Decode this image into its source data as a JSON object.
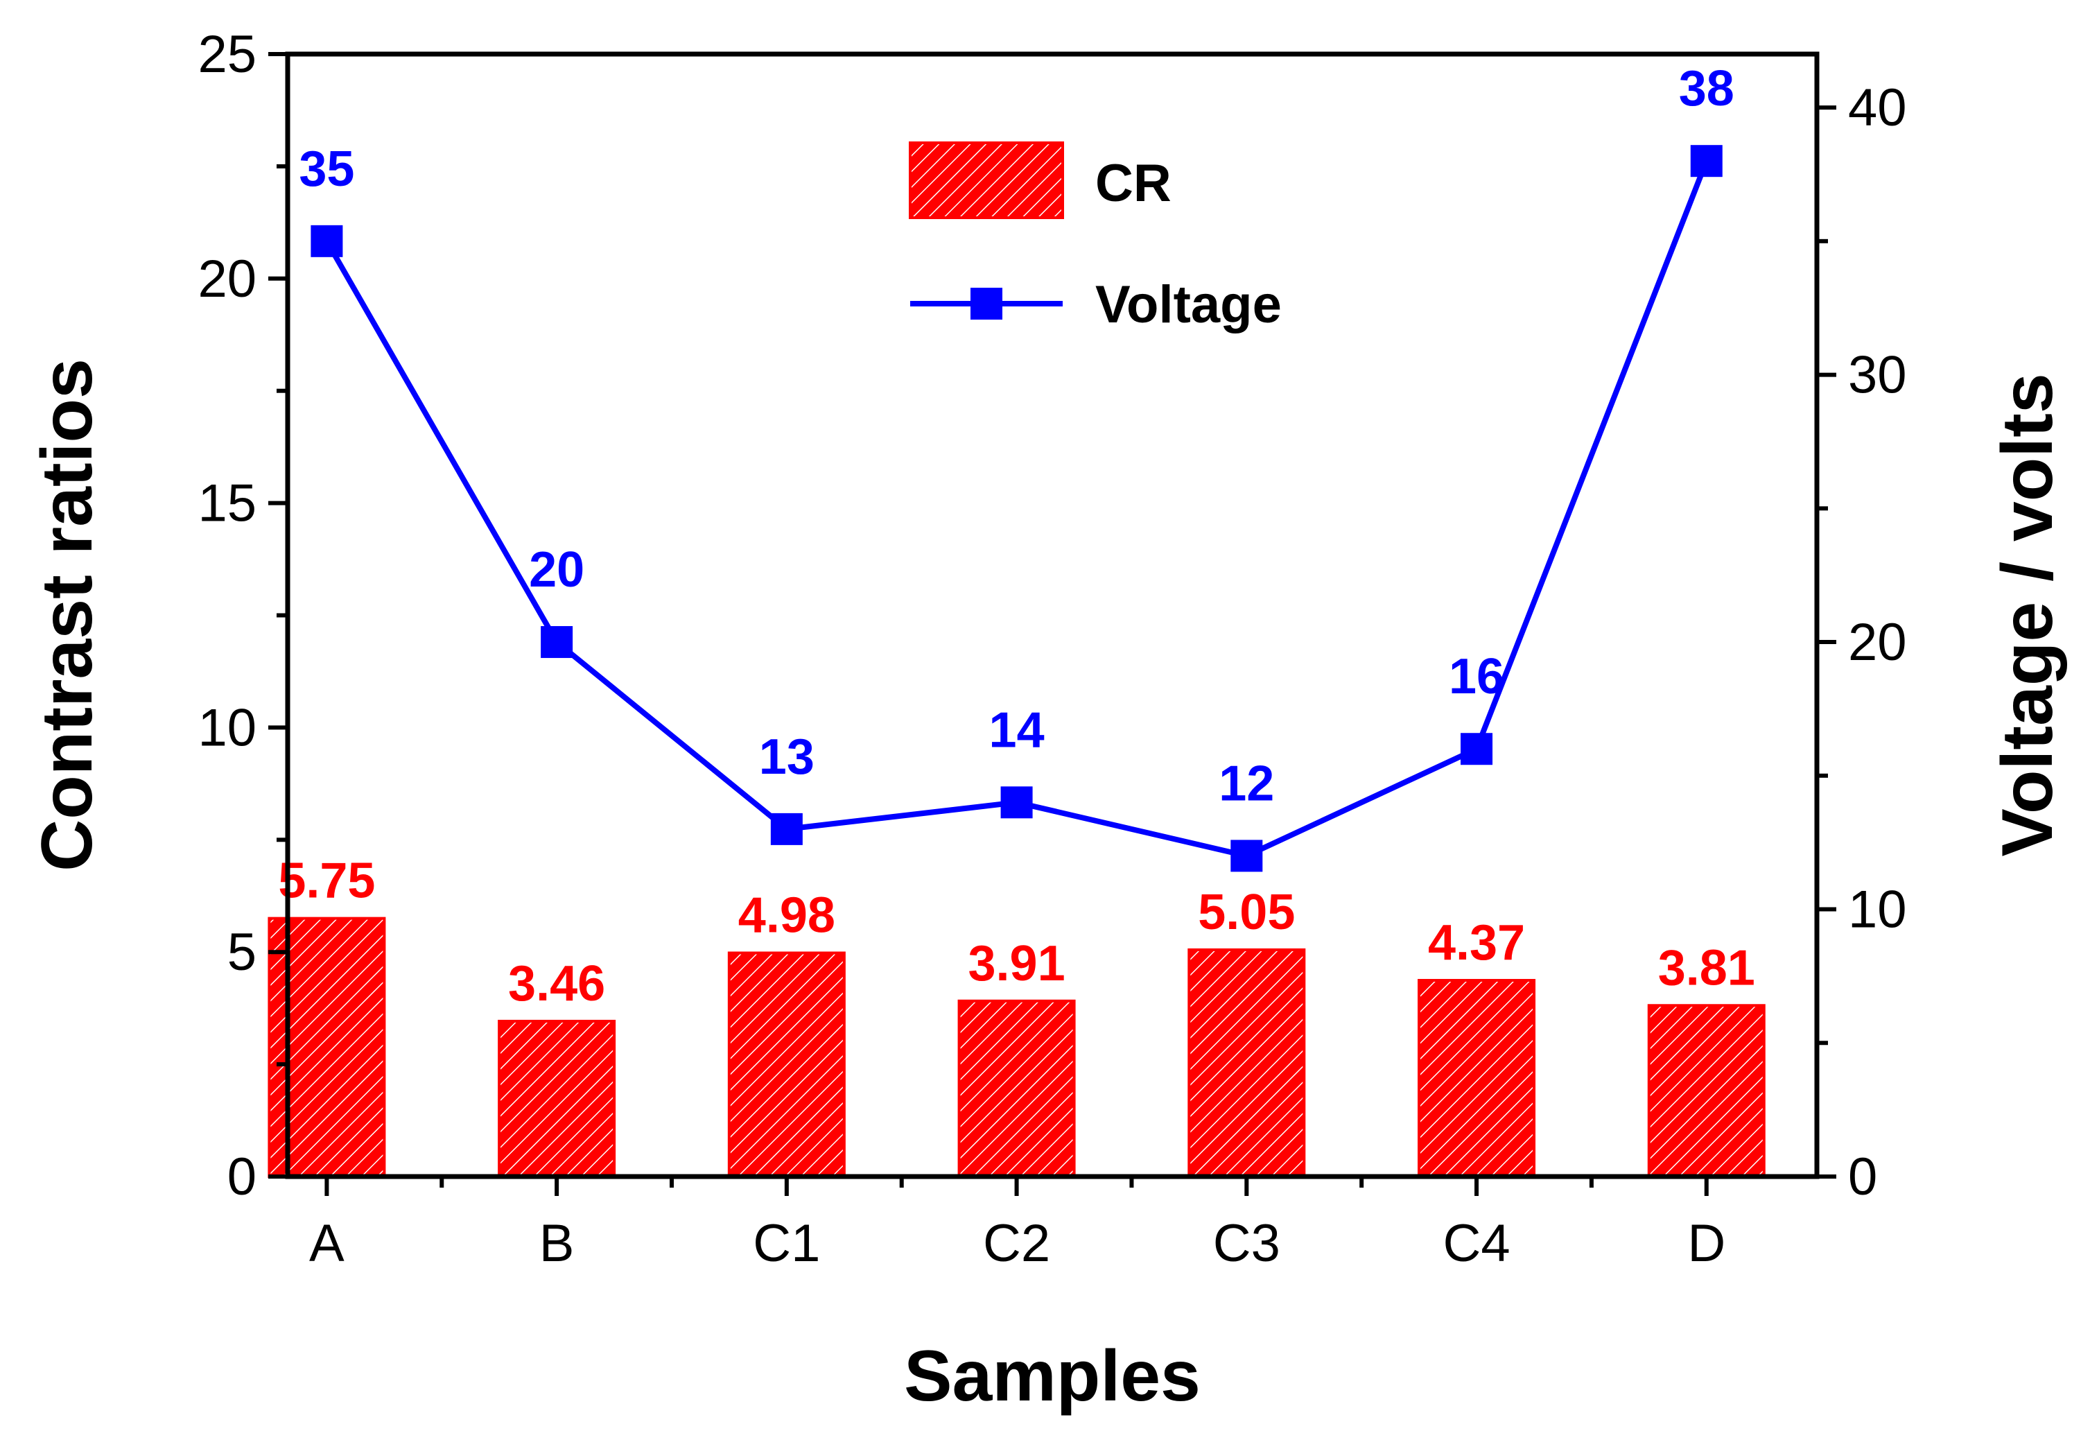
{
  "chart_data": {
    "type": "bar+line",
    "categories": [
      "A",
      "B",
      "C1",
      "C2",
      "C3",
      "C4",
      "D"
    ],
    "series": [
      {
        "name": "CR",
        "type": "bar",
        "axis": "left",
        "values": [
          5.75,
          3.46,
          4.98,
          3.91,
          5.05,
          4.37,
          3.81
        ],
        "labels": [
          "5.75",
          "3.46",
          "4.98",
          "3.91",
          "5.05",
          "4.37",
          "3.81"
        ],
        "color": "#ff0000"
      },
      {
        "name": "Voltage",
        "type": "line",
        "axis": "right",
        "values": [
          35,
          20,
          13,
          14,
          12,
          16,
          38
        ],
        "labels": [
          "35",
          "20",
          "13",
          "14",
          "12",
          "16",
          "38"
        ],
        "color": "#0000ff"
      }
    ],
    "xlabel": "Samples",
    "ylabel": "Contrast ratios",
    "y2label": "Voltage / volts",
    "ylim": [
      0,
      25
    ],
    "y2lim": [
      0,
      42
    ],
    "yticks": [
      0,
      5,
      10,
      15,
      20,
      25
    ],
    "y2ticks": [
      0,
      10,
      20,
      30,
      40
    ],
    "legend": [
      "CR",
      "Voltage"
    ],
    "legend_position": "top-center"
  }
}
